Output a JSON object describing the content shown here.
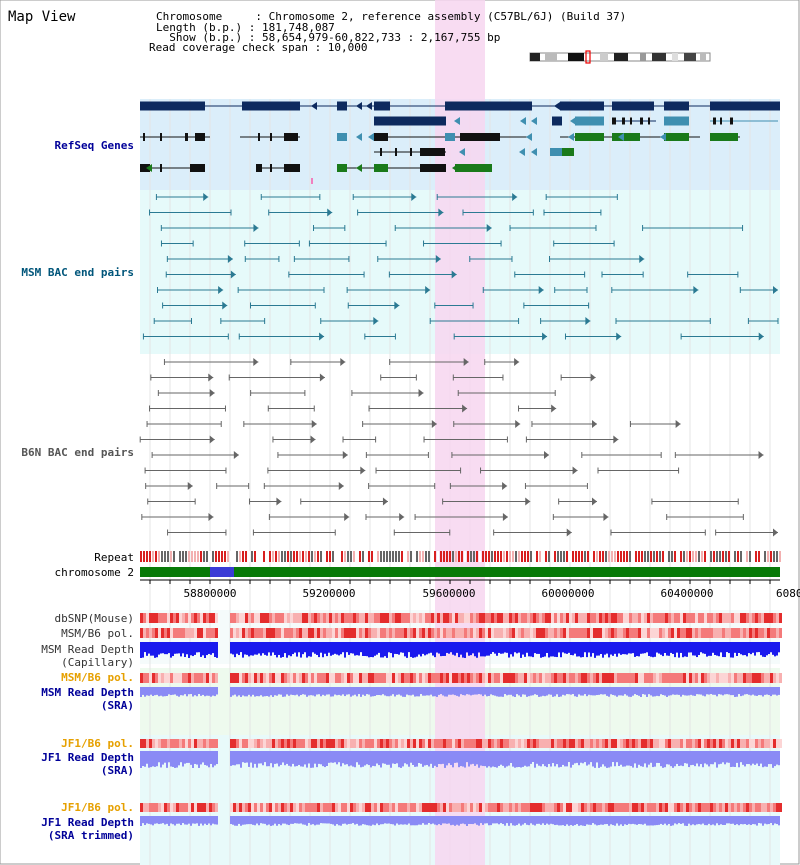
{
  "page": {
    "title": "Map View",
    "chromosome_line": "Chromosome     : Chromosome 2, reference assembly (C57BL/6J) (Build 37)",
    "length_line": "Length (b.p.) : 181,748,087",
    "show_line": "  Show (b.p.) : 58,654,979-60,822,733 : 2,167,755 bp",
    "read_line": "Read coverage check span : 10,000"
  },
  "tracks": {
    "refseq": "RefSeq Genes",
    "msm_bac": "MSM BAC end pairs",
    "b6n_bac": "B6N BAC end pairs",
    "repeat": "Repeat",
    "chromosome": "chromosome 2",
    "dbsnp": "dbSNP(Mouse)",
    "msm_b6_pol": "MSM/B6 pol.",
    "msm_depth_cap_1": "MSM Read Depth",
    "msm_depth_cap_2": "(Capillary)",
    "msm_b6_pol_sra": "MSM/B6 pol.",
    "msm_depth_sra_1": "MSM Read Depth",
    "msm_depth_sra_2": "(SRA)",
    "jf1_pol": "JF1/B6 pol.",
    "jf1_depth_1": "JF1 Read Depth",
    "jf1_depth_2": "(SRA)",
    "jf1_pol_trim": "JF1/B6 pol.",
    "jf1_trim_1": "JF1 Read Depth",
    "jf1_trim_2": "(SRA trimmed)"
  },
  "axis": {
    "ticks": [
      "58800000",
      "59200000",
      "59600000",
      "60000000",
      "60400000",
      "6080"
    ]
  },
  "colors": {
    "refseq_bg": "#dbeefa",
    "msm_bg": "#e6fafa",
    "highlight": "#f7d6f0",
    "gene_navy": "#0d2a5e",
    "gene_teal": "#3f8fb0",
    "gene_green": "#1a7a1a",
    "bac_line": "#2b7a93",
    "b6n_line": "#666666",
    "depth_blue": "#1a1aee",
    "depth_light": "#8a8af5",
    "pol_red": "#e43c3c",
    "label_blue": "#000099",
    "label_teal": "#00557a",
    "label_orange": "#e6a000"
  }
}
